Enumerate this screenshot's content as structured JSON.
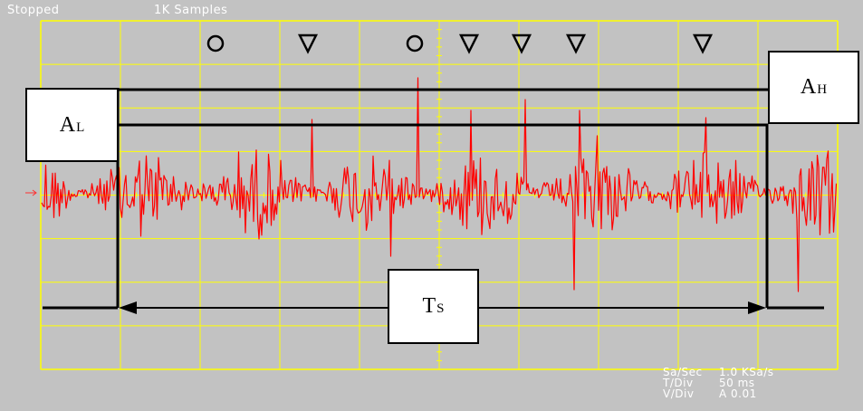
{
  "status": {
    "state": "Stopped",
    "samples": "1K Samples"
  },
  "readout": [
    {
      "key": "Sa/Sec",
      "value": "1.0 KSa/s"
    },
    {
      "key": "T/Div",
      "value": "50 ms"
    },
    {
      "key": "V/Div",
      "value": "A 0.01"
    }
  ],
  "labels": {
    "al": {
      "main": "A",
      "sub": "L"
    },
    "ah": {
      "main": "A",
      "sub": "H"
    },
    "ts": {
      "main": "T",
      "sub": "S"
    }
  },
  "markers": [
    "circle",
    "triangle-down",
    "circle",
    "triangle-down",
    "triangle-down",
    "triangle-down",
    "triangle-down"
  ],
  "colors": {
    "background": "#c2c2c2",
    "grid": "#ffff00",
    "trace": "#ff0000",
    "annotation": "#000000",
    "text": "#ffffff"
  }
}
